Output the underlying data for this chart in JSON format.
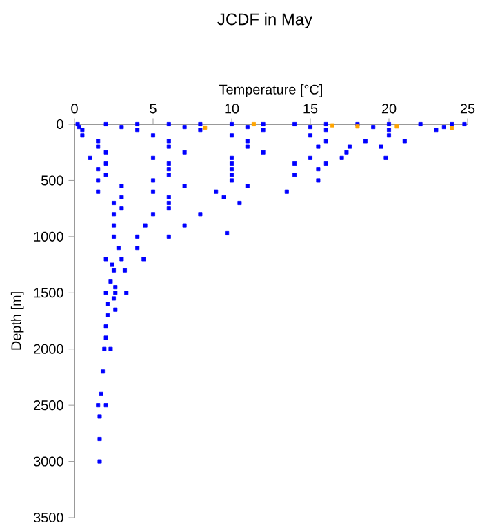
{
  "chart_data": {
    "type": "scatter",
    "title": "JCDF in May",
    "xlabel": "Temperature [°C]",
    "ylabel": "Depth [m]",
    "xlim": [
      0,
      25
    ],
    "xticks": [
      0,
      5,
      10,
      15,
      20,
      25
    ],
    "ylim": [
      3500,
      0
    ],
    "yticks": [
      0,
      500,
      1000,
      1500,
      2000,
      2500,
      3000,
      3500
    ],
    "marker": "square",
    "grid": false,
    "series": [
      {
        "color": "#0000ff",
        "x": [
          0.2,
          2,
          4,
          6,
          8,
          10,
          12,
          14,
          16,
          18,
          20,
          22,
          24,
          24.8,
          0.3,
          3,
          7,
          11,
          15,
          19,
          23.5,
          0.5,
          4,
          8,
          12,
          16,
          20,
          23,
          0.5,
          5,
          10,
          15,
          20,
          1.5,
          6,
          11,
          16,
          18.5,
          1.5,
          6,
          11,
          15.5,
          17.5,
          2,
          7,
          12,
          17.3,
          1,
          5,
          10,
          15,
          17,
          2,
          6,
          10,
          14,
          16,
          1.5,
          6,
          10,
          15.5,
          2,
          6,
          10,
          14,
          1.5,
          5,
          10,
          15.5,
          3,
          7,
          11,
          1.5,
          5,
          9,
          13.5,
          3,
          6,
          9.5,
          2.5,
          6,
          10.5,
          3,
          6,
          2.5,
          5,
          8,
          2.5,
          4.5,
          7,
          2.5,
          4,
          6,
          2.8,
          4,
          2,
          3,
          4.4,
          2.4,
          2.5,
          3.2,
          2.3,
          2.6,
          2,
          2.6,
          3.3,
          2.5,
          2.1,
          2.6,
          2.1,
          2.0,
          2.0,
          1.9,
          2.3,
          1.8,
          1.7,
          1.5,
          2.0,
          1.6,
          1.6,
          1.6,
          9.7,
          19.8,
          19.5,
          21
        ],
        "values": [
          0,
          0,
          0,
          0,
          0,
          0,
          0,
          0,
          0,
          0,
          0,
          0,
          0,
          0,
          25,
          25,
          25,
          25,
          25,
          25,
          25,
          50,
          50,
          50,
          50,
          50,
          50,
          50,
          100,
          100,
          100,
          100,
          100,
          150,
          150,
          150,
          150,
          150,
          200,
          200,
          200,
          200,
          200,
          250,
          250,
          250,
          250,
          300,
          300,
          300,
          300,
          300,
          350,
          350,
          350,
          350,
          350,
          400,
          400,
          400,
          400,
          450,
          450,
          450,
          450,
          500,
          500,
          500,
          500,
          550,
          550,
          550,
          600,
          600,
          600,
          600,
          650,
          650,
          650,
          700,
          700,
          700,
          750,
          750,
          800,
          800,
          800,
          900,
          900,
          900,
          1000,
          1000,
          1000,
          1100,
          1100,
          1200,
          1200,
          1200,
          1250,
          1300,
          1300,
          1400,
          1450,
          1500,
          1500,
          1500,
          1550,
          1600,
          1650,
          1700,
          1800,
          1900,
          2000,
          2000,
          2200,
          2400,
          2500,
          2500,
          2600,
          2800,
          3000,
          970,
          300,
          200,
          150
        ]
      },
      {
        "color": "#ffa500",
        "x": [
          8.3,
          11.4,
          16.4,
          18,
          20.5,
          24
        ],
        "values": [
          30,
          0,
          10,
          20,
          20,
          35
        ]
      }
    ]
  }
}
